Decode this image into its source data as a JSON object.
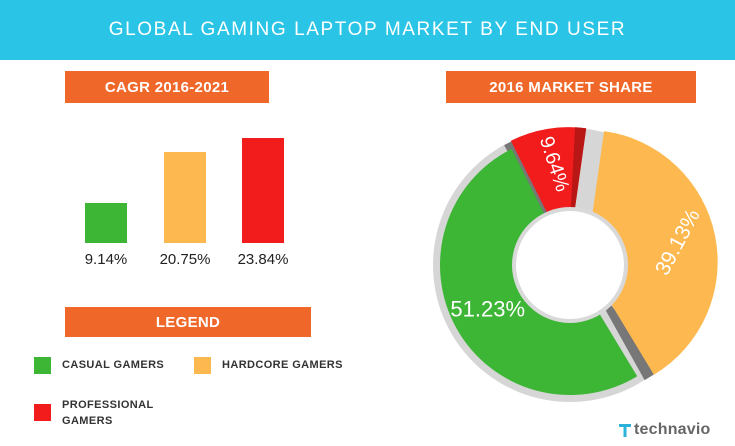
{
  "title": "GLOBAL GAMING LAPTOP MARKET BY END USER",
  "cagr_heading": "CAGR 2016-2021",
  "share_heading": "2016 MARKET SHARE",
  "legend_heading": "LEGEND",
  "legend": [
    {
      "label": "CASUAL GAMERS",
      "color": "#3db535"
    },
    {
      "label": "HARDCORE GAMERS",
      "color": "#fdb94f"
    },
    {
      "label": "PROFESSIONAL GAMERS",
      "color": "#f21c1c"
    }
  ],
  "brand": "technavio",
  "chart_data": [
    {
      "type": "bar",
      "title": "CAGR 2016-2021",
      "categories": [
        "CASUAL GAMERS",
        "HARDCORE GAMERS",
        "PROFESSIONAL GAMERS"
      ],
      "values": [
        9.14,
        20.75,
        23.84
      ],
      "value_labels": [
        "9.14%",
        "20.75%",
        "23.84%"
      ],
      "colors": [
        "#3db535",
        "#fdb94f",
        "#f21c1c"
      ],
      "ylim": [
        0,
        23.84
      ],
      "grid": false
    },
    {
      "type": "pie",
      "title": "2016 MARKET SHARE",
      "categories": [
        "CASUAL GAMERS",
        "HARDCORE GAMERS",
        "PROFESSIONAL GAMERS"
      ],
      "values": [
        51.23,
        39.13,
        9.64
      ],
      "value_labels": [
        "51.23%",
        "39.13%",
        "9.64%"
      ],
      "colors": [
        "#3db535",
        "#fdb94f",
        "#f21c1c"
      ]
    }
  ]
}
